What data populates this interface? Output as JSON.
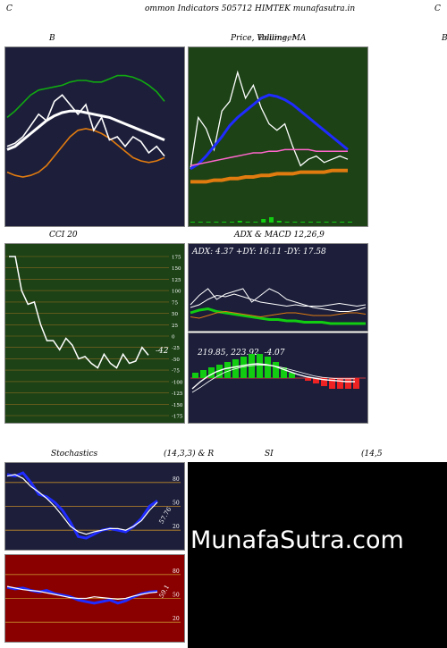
{
  "header": {
    "left_letter": "C",
    "title": "ommon  Indicators 505712  HIMTEK munafasutra.in",
    "right_letter": "C"
  },
  "panels": {
    "bb": {
      "title": "B"
    },
    "price": {
      "title": "Price,  Volume,  MA",
      "title_overlay": "Bollinger",
      "right_letter": "B"
    },
    "cci": {
      "title": "CCI 20",
      "value_label": "-42",
      "ticks": [
        "175",
        "150",
        "125",
        "100",
        "75",
        "50",
        "25",
        "0",
        "-25",
        "-50",
        "-75",
        "-100",
        "-125",
        "-150",
        "-175"
      ]
    },
    "adx": {
      "title": "ADX  & MACD 12,26,9",
      "readout": "ADX: 4.37 +DY: 16.11 -DY: 17.58"
    },
    "macd": {
      "readout": "219.85,  223.92,  -4.07"
    },
    "stoch": {
      "title_left": "Stochastics",
      "title_right": "(14,3,3) & R",
      "value_label": "57.76",
      "ticks": [
        "80",
        "50",
        "20"
      ]
    },
    "rsi": {
      "title_left": "SI",
      "title_right": "(14,5",
      "value_label": "59.1",
      "ticks": [
        "80",
        "50",
        "20"
      ]
    }
  },
  "watermark": "MunafaSutra.com",
  "colors": {
    "navy_bg": "#1c1e3a",
    "green_bg": "#1c4216",
    "red_bg": "#8a0000",
    "orange": "#e07b10",
    "blue": "#1f2bff",
    "lime": "#11cc11",
    "white": "#ffffff",
    "grid": "#8a6a20"
  },
  "chart_data": [
    {
      "name": "bollinger-panel",
      "type": "line",
      "series": [
        {
          "color": "#11aa11",
          "values": [
            62,
            66,
            71,
            76,
            79,
            80,
            81,
            82,
            84,
            85,
            85,
            84,
            84,
            86,
            88,
            88,
            87,
            85,
            82,
            78,
            72
          ]
        },
        {
          "color": "#ffffff",
          "values": [
            42,
            44,
            48,
            52,
            56,
            60,
            63,
            65,
            66,
            66,
            65,
            64,
            63,
            62,
            60,
            58,
            56,
            54,
            52,
            50,
            48
          ]
        },
        {
          "color": "#e07b10",
          "values": [
            28,
            26,
            25,
            26,
            28,
            32,
            38,
            44,
            50,
            54,
            55,
            54,
            52,
            49,
            45,
            41,
            37,
            35,
            34,
            35,
            37
          ]
        },
        {
          "color": "#ffffff",
          "values": [
            44,
            46,
            50,
            57,
            64,
            60,
            72,
            76,
            70,
            64,
            70,
            54,
            62,
            48,
            50,
            44,
            50,
            47,
            40,
            44,
            38
          ]
        }
      ]
    },
    {
      "name": "price-panel",
      "type": "line",
      "series": [
        {
          "color": "#ffffff",
          "values": [
            30,
            62,
            55,
            42,
            66,
            72,
            90,
            74,
            82,
            68,
            58,
            54,
            58,
            44,
            32,
            36,
            38,
            34,
            36,
            38,
            36
          ]
        },
        {
          "color": "#1f2bff",
          "values": [
            30,
            33,
            38,
            44,
            50,
            57,
            62,
            66,
            70,
            74,
            76,
            75,
            73,
            70,
            66,
            62,
            58,
            54,
            50,
            46,
            42
          ]
        },
        {
          "color": "#ff66cc",
          "values": [
            32,
            33,
            34,
            35,
            36,
            37,
            38,
            39,
            40,
            40,
            41,
            41,
            42,
            42,
            42,
            42,
            41,
            41,
            41,
            41,
            41
          ]
        },
        {
          "color": "#e07b10",
          "values": [
            22,
            22,
            22,
            23,
            23,
            24,
            24,
            25,
            25,
            26,
            26,
            27,
            27,
            27,
            28,
            28,
            28,
            28,
            29,
            29,
            29
          ]
        }
      ],
      "volume": [
        1,
        1,
        1,
        1,
        1,
        1,
        2,
        1,
        1,
        4,
        6,
        2,
        1,
        1,
        1,
        1,
        1,
        1,
        1,
        1,
        1
      ]
    },
    {
      "name": "cci",
      "type": "line",
      "ylim": [
        -175,
        175
      ],
      "values": [
        200,
        180,
        100,
        70,
        75,
        25,
        -10,
        -10,
        -30,
        -5,
        -20,
        -50,
        -45,
        -60,
        -70,
        -40,
        -60,
        -70,
        -40,
        -60,
        -55,
        -25,
        -42
      ]
    },
    {
      "name": "adx",
      "type": "line",
      "ylim": [
        0,
        50
      ],
      "series": [
        {
          "color": "#ffffff",
          "values": [
            18,
            25,
            30,
            22,
            26,
            28,
            30,
            20,
            25,
            30,
            27,
            22,
            20,
            18,
            16,
            15,
            14,
            13,
            13,
            14,
            16
          ]
        },
        {
          "color": "#ffffff",
          "values": [
            16,
            18,
            22,
            25,
            24,
            26,
            24,
            22,
            20,
            19,
            18,
            17,
            18,
            17,
            17,
            17,
            18,
            19,
            18,
            17,
            18
          ]
        },
        {
          "color": "#11cc11",
          "values": [
            12,
            14,
            15,
            13,
            12,
            11,
            10,
            9,
            8,
            7,
            7,
            6,
            6,
            5,
            5,
            5,
            4,
            4,
            4,
            4,
            4
          ]
        },
        {
          "color": "#e07b10",
          "values": [
            9,
            8,
            10,
            12,
            13,
            12,
            11,
            10,
            9,
            10,
            11,
            12,
            12,
            11,
            10,
            10,
            10,
            11,
            12,
            12,
            11
          ]
        }
      ]
    },
    {
      "name": "macd",
      "type": "bar",
      "values": [
        2,
        3,
        4,
        5,
        6,
        7,
        8,
        9,
        9,
        8,
        6,
        4,
        2,
        0,
        -1,
        -2,
        -3,
        -4,
        -4,
        -4,
        -4
      ],
      "macd": [
        210,
        220,
        228,
        234,
        238,
        240,
        242,
        244,
        245,
        244,
        242,
        238,
        234,
        230,
        227,
        225,
        223,
        222,
        221,
        220,
        220
      ],
      "signal": [
        205,
        212,
        220,
        227,
        233,
        237,
        240,
        242,
        243,
        243,
        242,
        240,
        237,
        234,
        231,
        228,
        226,
        225,
        224,
        224,
        224
      ]
    },
    {
      "name": "stochastics",
      "type": "line",
      "ylim": [
        0,
        100
      ],
      "series": [
        {
          "color": "#1f2bff",
          "values": [
            90,
            88,
            92,
            80,
            65,
            62,
            55,
            45,
            30,
            12,
            10,
            15,
            20,
            22,
            20,
            18,
            25,
            35,
            50,
            57
          ]
        },
        {
          "color": "#ffffff",
          "values": [
            88,
            90,
            85,
            75,
            68,
            60,
            50,
            38,
            25,
            18,
            15,
            18,
            20,
            22,
            22,
            20,
            25,
            32,
            45,
            55
          ]
        }
      ]
    },
    {
      "name": "rsi",
      "type": "line",
      "ylim": [
        0,
        100
      ],
      "series": [
        {
          "color": "#1f2bff",
          "values": [
            64,
            62,
            63,
            60,
            58,
            60,
            56,
            54,
            52,
            48,
            46,
            44,
            46,
            48,
            44,
            47,
            52,
            56,
            58,
            59
          ]
        },
        {
          "color": "#ffffff",
          "values": [
            65,
            63,
            61,
            60,
            59,
            57,
            55,
            53,
            51,
            50,
            50,
            52,
            51,
            50,
            49,
            50,
            53,
            55,
            57,
            58
          ]
        }
      ]
    }
  ]
}
